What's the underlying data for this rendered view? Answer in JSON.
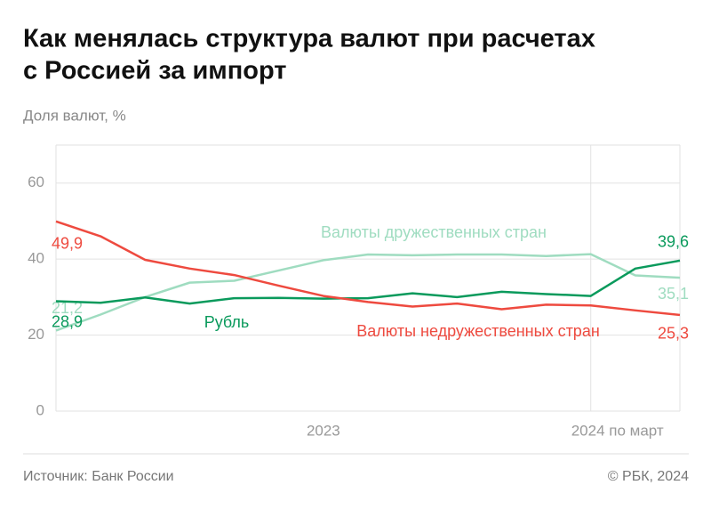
{
  "chart_data": {
    "type": "line",
    "title": [
      "Как менялась структура валют при расчетах",
      "с Россией за импорт"
    ],
    "subtitle": "Доля валют, %",
    "source": "Источник: Банк России",
    "credit": "© РБК, 2024",
    "categories": [
      null,
      null,
      null,
      null,
      null,
      null,
      "2023",
      null,
      null,
      null,
      null,
      null,
      "2024 по март",
      null,
      null
    ],
    "ylim": [
      0,
      70
    ],
    "yticks": [
      0,
      20,
      40,
      60
    ],
    "grid": true,
    "series": [
      {
        "name": "Валюты дружественных стран",
        "color": "#9fdcc0",
        "values": [
          21.2,
          25.4,
          30.0,
          33.8,
          34.3,
          37.0,
          39.7,
          41.2,
          41.0,
          41.2,
          41.2,
          40.8,
          41.3,
          35.7,
          35.1
        ],
        "value_labels": [
          "21,2",
          null,
          null,
          null,
          null,
          null,
          null,
          null,
          null,
          null,
          null,
          null,
          null,
          null,
          "35,1"
        ]
      },
      {
        "name": "Рубль",
        "color": "#0a9a5c",
        "values": [
          28.9,
          28.5,
          29.9,
          28.3,
          29.7,
          29.8,
          29.6,
          29.7,
          31.0,
          30.0,
          31.4,
          30.8,
          30.3,
          37.5,
          39.6
        ],
        "value_labels": [
          "28,9",
          null,
          null,
          null,
          null,
          null,
          null,
          null,
          null,
          null,
          null,
          null,
          null,
          null,
          "39,6"
        ]
      },
      {
        "name": "Валюты недружественных стран",
        "color": "#ee4a3f",
        "values": [
          49.9,
          46.0,
          39.8,
          37.5,
          35.8,
          33.0,
          30.3,
          28.7,
          27.5,
          28.3,
          26.8,
          28.0,
          27.8,
          26.5,
          25.3
        ],
        "value_labels": [
          "49,9",
          null,
          null,
          null,
          null,
          null,
          null,
          null,
          null,
          null,
          null,
          null,
          null,
          null,
          "25,3"
        ]
      }
    ]
  }
}
